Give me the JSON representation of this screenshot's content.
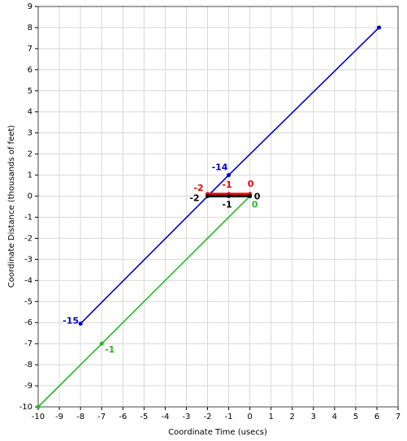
{
  "chart_data": {
    "type": "line",
    "xlabel": "Coordinate Time (usecs)",
    "ylabel": "Coordinate Distance (thousands of feet)",
    "xlim": [
      -10,
      7
    ],
    "ylim": [
      -10,
      9
    ],
    "xticks": [
      -10,
      -9,
      -8,
      -7,
      -6,
      -5,
      -4,
      -3,
      -2,
      -1,
      0,
      1,
      2,
      3,
      4,
      5,
      6,
      7
    ],
    "yticks": [
      -10,
      -9,
      -8,
      -7,
      -6,
      -5,
      -4,
      -3,
      -2,
      -1,
      0,
      1,
      2,
      3,
      4,
      5,
      6,
      7,
      8,
      9
    ],
    "grid": true,
    "series": [
      {
        "color": "#0000cc",
        "x": [
          -8,
          -1,
          6.1
        ],
        "values": [
          -6.05,
          1,
          8
        ],
        "labels": [
          "-15",
          "-14",
          null
        ]
      },
      {
        "color": "#22bb22",
        "x": [
          -10,
          -7,
          0
        ],
        "values": [
          -10,
          -7,
          0
        ],
        "labels": [
          null,
          "-1",
          "0"
        ]
      },
      {
        "color": "#ee0000",
        "x": [
          -2,
          -1,
          0
        ],
        "values": [
          0.1,
          0.1,
          0.1
        ],
        "labels": [
          "-2",
          "-1",
          "0"
        ]
      },
      {
        "color": "#000000",
        "x": [
          -2,
          -1,
          0
        ],
        "values": [
          0,
          0,
          0
        ],
        "labels": [
          "-2",
          "-1",
          "0"
        ]
      }
    ]
  }
}
